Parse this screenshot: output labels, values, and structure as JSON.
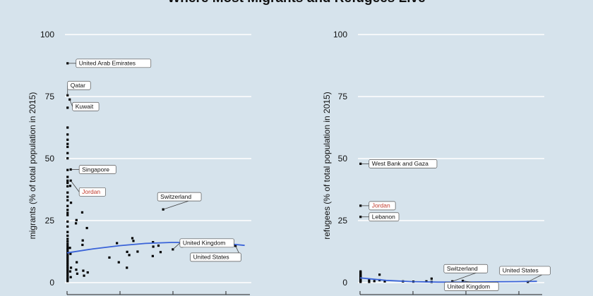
{
  "title": "Where Most Migrants and Refugees Live",
  "colors": {
    "background": "#d6e3ec",
    "grid": "#ffffff",
    "points": "#000000",
    "trend": "#3a63d8",
    "highlight": "#c0392b"
  },
  "chart_data": [
    {
      "type": "scatter",
      "ylabel": "migrants (% of total population in 2015)",
      "ylim": [
        0,
        100
      ],
      "yticks": [
        0,
        25,
        50,
        75,
        100
      ],
      "xlim": [
        0,
        70000
      ],
      "grid": true,
      "points": [
        [
          200,
          88.4
        ],
        [
          200,
          75.5
        ],
        [
          200,
          70.5
        ],
        [
          200,
          62.5
        ],
        [
          200,
          59.7
        ],
        [
          200,
          57.6
        ],
        [
          200,
          55.9
        ],
        [
          200,
          54.7
        ],
        [
          200,
          52.2
        ],
        [
          200,
          50.1
        ],
        [
          200,
          45.4
        ],
        [
          200,
          42.6
        ],
        [
          200,
          41.1
        ],
        [
          200,
          40.2
        ],
        [
          200,
          38.8
        ],
        [
          200,
          36.3
        ],
        [
          200,
          34.6
        ],
        [
          200,
          33.2
        ],
        [
          200,
          30.9
        ],
        [
          200,
          29.3
        ],
        [
          200,
          28.1
        ],
        [
          200,
          27.2
        ],
        [
          200,
          24.6
        ],
        [
          200,
          22.6
        ],
        [
          200,
          20.4
        ],
        [
          200,
          18.9
        ],
        [
          200,
          17.6
        ],
        [
          200,
          16.6
        ],
        [
          200,
          15.6
        ],
        [
          200,
          14.7
        ],
        [
          200,
          13.8
        ],
        [
          200,
          13.0
        ],
        [
          200,
          12.2
        ],
        [
          200,
          11.4
        ],
        [
          200,
          10.6
        ],
        [
          200,
          9.8
        ],
        [
          200,
          9.0
        ],
        [
          200,
          8.2
        ],
        [
          200,
          7.4
        ],
        [
          200,
          6.6
        ],
        [
          200,
          5.8
        ],
        [
          200,
          5.0
        ],
        [
          200,
          4.2
        ],
        [
          200,
          3.4
        ],
        [
          200,
          2.6
        ],
        [
          200,
          1.8
        ],
        [
          200,
          1.2
        ],
        [
          200,
          0.6
        ],
        [
          1000,
          73.8
        ],
        [
          1400,
          45.6
        ],
        [
          1400,
          41.1
        ],
        [
          1200,
          39.0
        ],
        [
          1500,
          32.2
        ],
        [
          1100,
          14.0
        ],
        [
          1300,
          11.6
        ],
        [
          1500,
          6.0
        ],
        [
          1200,
          4.5
        ],
        [
          1400,
          2.2
        ],
        [
          3600,
          25.2
        ],
        [
          3400,
          23.9
        ],
        [
          3700,
          8.2
        ],
        [
          3500,
          5.2
        ],
        [
          3900,
          3.6
        ],
        [
          5800,
          28.3
        ],
        [
          6000,
          17.0
        ],
        [
          5900,
          15.2
        ],
        [
          6200,
          4.8
        ],
        [
          6500,
          2.8
        ],
        [
          7600,
          22.0
        ],
        [
          7900,
          4.1
        ],
        [
          16200,
          10.1
        ],
        [
          19100,
          15.9
        ],
        [
          19800,
          8.2
        ],
        [
          22900,
          6.0
        ],
        [
          23000,
          12.4
        ],
        [
          23800,
          11.1
        ],
        [
          25000,
          17.9
        ],
        [
          25400,
          16.8
        ],
        [
          27000,
          12.5
        ],
        [
          32900,
          16.3
        ],
        [
          33000,
          14.5
        ],
        [
          32800,
          10.7
        ],
        [
          35000,
          14.9
        ],
        [
          35800,
          12.3
        ],
        [
          36800,
          29.5
        ],
        [
          40500,
          13.4
        ],
        [
          44000,
          14.6
        ],
        [
          47800,
          15.8
        ],
        [
          64500,
          14.8
        ]
      ],
      "trend": [
        [
          0,
          12.0
        ],
        [
          10000,
          13.6
        ],
        [
          20000,
          14.9
        ],
        [
          30000,
          15.8
        ],
        [
          40000,
          16.2
        ],
        [
          50000,
          16.2
        ],
        [
          60000,
          15.8
        ],
        [
          68000,
          15.0
        ]
      ],
      "annotations": [
        {
          "label": "United Arab Emirates",
          "x": 200,
          "y": 88.4,
          "highlight": false
        },
        {
          "label": "Qatar",
          "x": 200,
          "y": 75.5,
          "highlight": false
        },
        {
          "label": "Kuwait",
          "x": 1000,
          "y": 73.8,
          "highlight": false
        },
        {
          "label": "Singapore",
          "x": 1400,
          "y": 45.6,
          "highlight": false
        },
        {
          "label": "Jordan",
          "x": 1400,
          "y": 41.1,
          "highlight": true
        },
        {
          "label": "Switzerland",
          "x": 36800,
          "y": 29.5,
          "highlight": false
        },
        {
          "label": "United Kingdom",
          "x": 40500,
          "y": 13.4,
          "highlight": false
        },
        {
          "label": "United States",
          "x": 64500,
          "y": 14.8,
          "highlight": false
        }
      ]
    },
    {
      "type": "scatter",
      "ylabel": "refugees (% of total population in 2015)",
      "ylim": [
        0,
        100
      ],
      "yticks": [
        0,
        25,
        50,
        75,
        100
      ],
      "xlim": [
        0,
        70000
      ],
      "grid": true,
      "points": [
        [
          200,
          47.9
        ],
        [
          200,
          31.0
        ],
        [
          200,
          26.5
        ],
        [
          200,
          4.5
        ],
        [
          200,
          4.0
        ],
        [
          200,
          3.5
        ],
        [
          200,
          3.0
        ],
        [
          200,
          2.6
        ],
        [
          200,
          2.2
        ],
        [
          200,
          1.8
        ],
        [
          200,
          1.4
        ],
        [
          200,
          1.0
        ],
        [
          200,
          0.6
        ],
        [
          200,
          0.3
        ],
        [
          3500,
          1.0
        ],
        [
          3500,
          0.3
        ],
        [
          5500,
          0.6
        ],
        [
          7500,
          1.0
        ],
        [
          7500,
          3.2
        ],
        [
          9500,
          0.5
        ],
        [
          16500,
          0.5
        ],
        [
          20500,
          0.4
        ],
        [
          25500,
          0.5
        ],
        [
          27500,
          0.3
        ],
        [
          27500,
          1.6
        ],
        [
          35500,
          0.5
        ],
        [
          35500,
          0.3
        ],
        [
          39500,
          0.7
        ],
        [
          64500,
          0.3
        ]
      ],
      "trend": [
        [
          0,
          1.9
        ],
        [
          10000,
          0.9
        ],
        [
          20000,
          0.4
        ],
        [
          30000,
          0.2
        ],
        [
          40000,
          0.2
        ],
        [
          50000,
          0.3
        ],
        [
          60000,
          0.4
        ],
        [
          68000,
          0.5
        ]
      ],
      "annotations": [
        {
          "label": "West Bank and Gaza",
          "x": 200,
          "y": 47.9,
          "highlight": false
        },
        {
          "label": "Jordan",
          "x": 200,
          "y": 31.0,
          "highlight": true
        },
        {
          "label": "Lebanon",
          "x": 200,
          "y": 26.5,
          "highlight": false
        },
        {
          "label": "Switzerland",
          "x": 35500,
          "y": 0.5,
          "highlight": false
        },
        {
          "label": "United States",
          "x": 64500,
          "y": 0.3,
          "highlight": false
        },
        {
          "label": "United Kingdom",
          "x": 39500,
          "y": 0.7,
          "highlight": false
        }
      ]
    }
  ]
}
